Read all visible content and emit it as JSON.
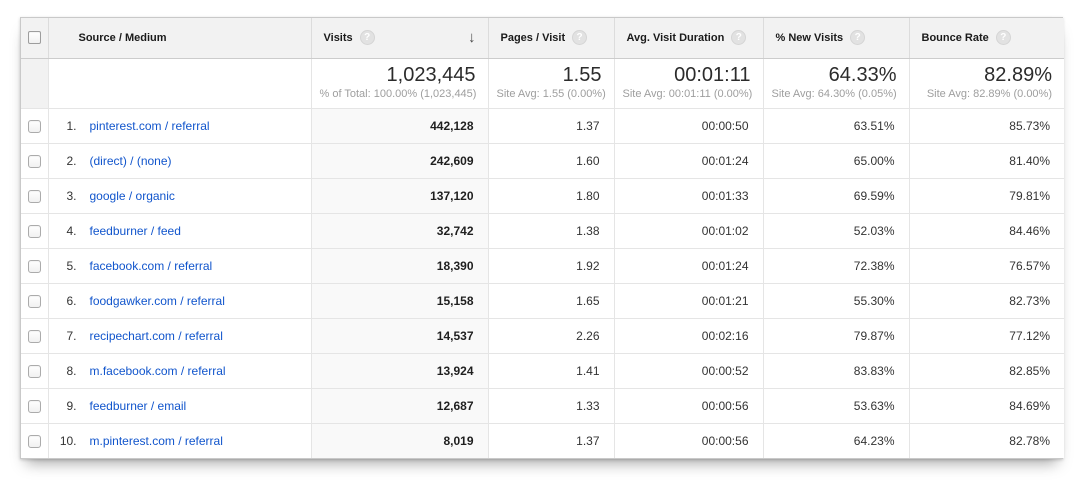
{
  "table": {
    "help_glyph": "?",
    "sort_icon": "↓",
    "colors": {
      "link": "#1155cc",
      "header_bg": "#f2f2f2",
      "border": "#e5e5e5",
      "sorted_column_bg": "#f9f9f9"
    },
    "columns": {
      "source": {
        "label": "Source / Medium"
      },
      "visits": {
        "label": "Visits",
        "sorted": "desc"
      },
      "pages": {
        "label": "Pages / Visit"
      },
      "duration": {
        "label": "Avg. Visit Duration"
      },
      "new_visits": {
        "label": "% New Visits"
      },
      "bounce": {
        "label": "Bounce Rate"
      }
    },
    "summary": {
      "visits": "1,023,445",
      "visits_sub": "% of Total: 100.00% (1,023,445)",
      "pages": "1.55",
      "pages_sub": "Site Avg: 1.55 (0.00%)",
      "duration": "00:01:11",
      "duration_sub": "Site Avg: 00:01:11 (0.00%)",
      "new_visits": "64.33%",
      "new_visits_sub": "Site Avg: 64.30% (0.05%)",
      "bounce": "82.89%",
      "bounce_sub": "Site Avg: 82.89% (0.00%)"
    },
    "rows": [
      {
        "rank": "1.",
        "source": "pinterest.com / referral",
        "visits": "442,128",
        "pages": "1.37",
        "duration": "00:00:50",
        "new_visits": "63.51%",
        "bounce": "85.73%"
      },
      {
        "rank": "2.",
        "source": "(direct) / (none)",
        "visits": "242,609",
        "pages": "1.60",
        "duration": "00:01:24",
        "new_visits": "65.00%",
        "bounce": "81.40%"
      },
      {
        "rank": "3.",
        "source": "google / organic",
        "visits": "137,120",
        "pages": "1.80",
        "duration": "00:01:33",
        "new_visits": "69.59%",
        "bounce": "79.81%"
      },
      {
        "rank": "4.",
        "source": "feedburner / feed",
        "visits": "32,742",
        "pages": "1.38",
        "duration": "00:01:02",
        "new_visits": "52.03%",
        "bounce": "84.46%"
      },
      {
        "rank": "5.",
        "source": "facebook.com / referral",
        "visits": "18,390",
        "pages": "1.92",
        "duration": "00:01:24",
        "new_visits": "72.38%",
        "bounce": "76.57%"
      },
      {
        "rank": "6.",
        "source": "foodgawker.com / referral",
        "visits": "15,158",
        "pages": "1.65",
        "duration": "00:01:21",
        "new_visits": "55.30%",
        "bounce": "82.73%"
      },
      {
        "rank": "7.",
        "source": "recipechart.com / referral",
        "visits": "14,537",
        "pages": "2.26",
        "duration": "00:02:16",
        "new_visits": "79.87%",
        "bounce": "77.12%"
      },
      {
        "rank": "8.",
        "source": "m.facebook.com / referral",
        "visits": "13,924",
        "pages": "1.41",
        "duration": "00:00:52",
        "new_visits": "83.83%",
        "bounce": "82.85%"
      },
      {
        "rank": "9.",
        "source": "feedburner / email",
        "visits": "12,687",
        "pages": "1.33",
        "duration": "00:00:56",
        "new_visits": "53.63%",
        "bounce": "84.69%"
      },
      {
        "rank": "10.",
        "source": "m.pinterest.com / referral",
        "visits": "8,019",
        "pages": "1.37",
        "duration": "00:00:56",
        "new_visits": "64.23%",
        "bounce": "82.78%"
      }
    ]
  }
}
